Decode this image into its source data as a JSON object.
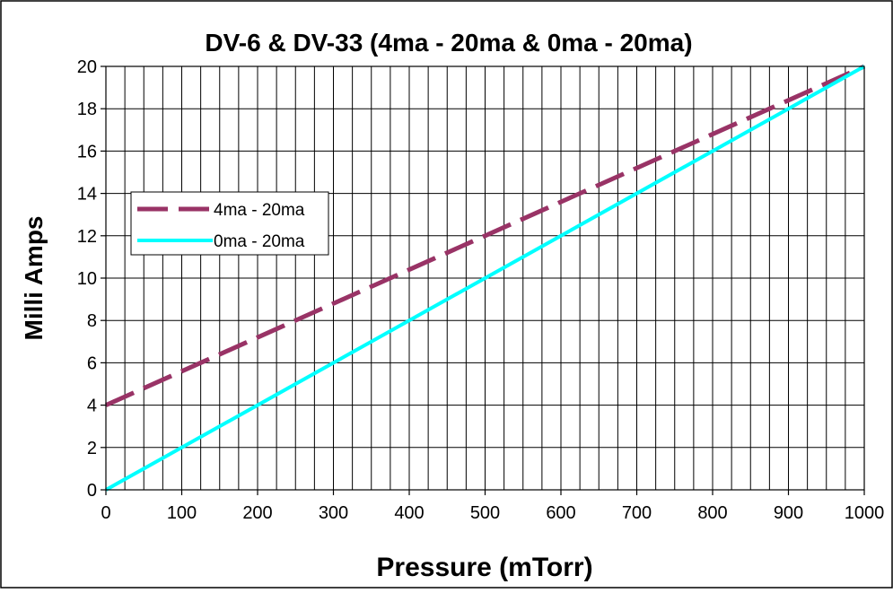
{
  "chart_data": {
    "type": "line",
    "title": "DV-6 & DV-33 (4ma - 20ma & 0ma - 20ma)",
    "xlabel": "Pressure (mTorr)",
    "ylabel": "Milli Amps",
    "xlim": [
      0,
      1000
    ],
    "ylim": [
      0,
      20
    ],
    "x_ticks": [
      0,
      100,
      200,
      300,
      400,
      500,
      600,
      700,
      800,
      900,
      1000
    ],
    "y_ticks": [
      0,
      2,
      4,
      6,
      8,
      10,
      12,
      14,
      16,
      18,
      20
    ],
    "x_minor_step": 25,
    "grid": true,
    "legend_position": "left",
    "series": [
      {
        "name": "4ma - 20ma",
        "x": [
          0,
          1000
        ],
        "y": [
          4,
          20
        ],
        "color": "#993366",
        "style": "dashed"
      },
      {
        "name": "0ma - 20ma",
        "x": [
          0,
          1000
        ],
        "y": [
          0,
          20
        ],
        "color": "#00FFFF",
        "style": "solid"
      }
    ]
  }
}
